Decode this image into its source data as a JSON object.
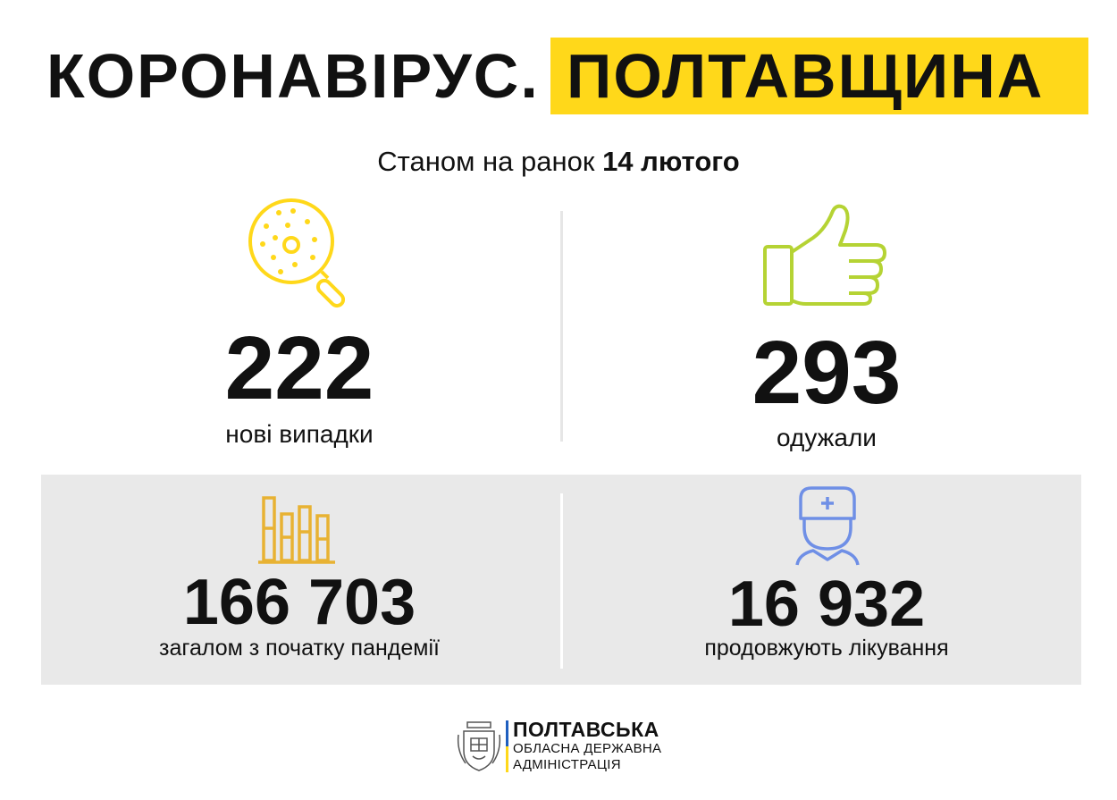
{
  "header": {
    "title_left": "КОРОНАВІРУС.",
    "title_right": "ПОЛТАВЩИНА",
    "subtitle_prefix": "Станом на ранок",
    "subtitle_date": "14 лютого"
  },
  "stats": [
    {
      "value": "222",
      "label": "нові випадки",
      "icon": "magnifier-virus-icon",
      "color": "#ffd81a"
    },
    {
      "value": "293",
      "label": "одужали",
      "icon": "thumbs-up-icon",
      "color": "#b5d334"
    },
    {
      "value": "166 703",
      "label": "загалом з початку пандемії",
      "icon": "bar-chart-icon",
      "color": "#e8b233"
    },
    {
      "value": "16 932",
      "label": "продовжують лікування",
      "icon": "doctor-icon",
      "color": "#6f8fe6"
    }
  ],
  "footer": {
    "line1": "ПОЛТАВСЬКА",
    "line2": "ОБЛАСНА ДЕРЖАВНА",
    "line3": "АДМІНІСТРАЦІЯ",
    "logo_icon": "coat-of-arms-icon",
    "bar_colors": [
      "#1f5fbf",
      "#ffd81a"
    ]
  }
}
